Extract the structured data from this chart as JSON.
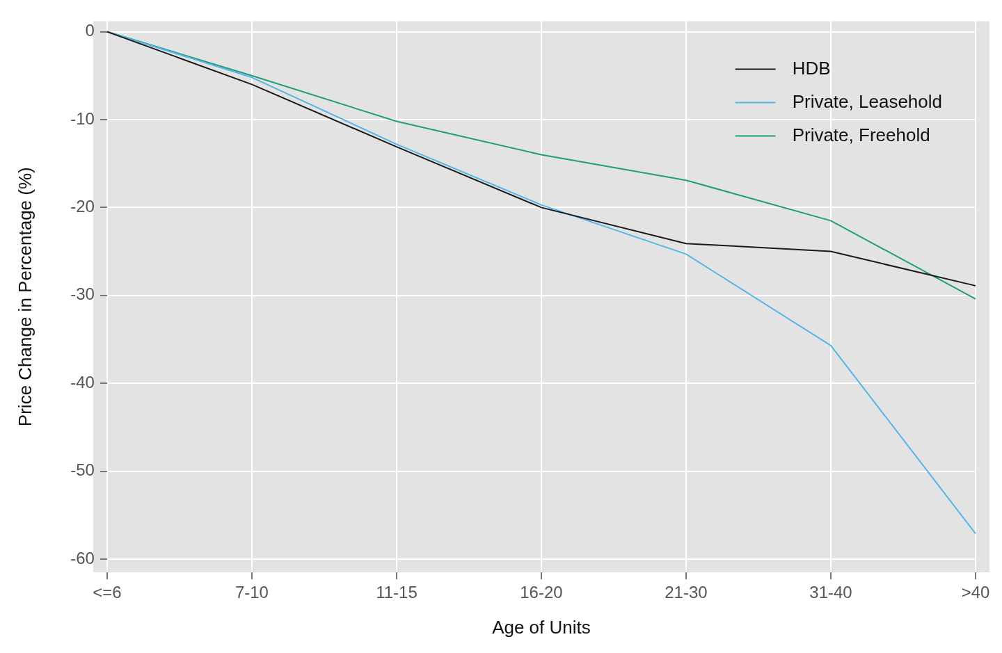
{
  "chart_data": {
    "type": "line",
    "xlabel": "Age of Units",
    "ylabel": "Price Change in Percentage (%)",
    "categories": [
      "<=6",
      "7-10",
      "11-15",
      "16-20",
      "21-30",
      "31-40",
      ">40"
    ],
    "series": [
      {
        "name": "HDB",
        "color": "#1a1a1a",
        "values": [
          0,
          -6,
          -13.1,
          -20,
          -24.1,
          -25,
          -28.9
        ]
      },
      {
        "name": "Private, Leasehold",
        "color": "#56b4e9",
        "values": [
          0,
          -5.2,
          -12.8,
          -19.7,
          -25.3,
          -35.7,
          -57.1
        ]
      },
      {
        "name": "Private, Freehold",
        "color": "#1f9e78",
        "values": [
          0,
          -5,
          -10.2,
          -14,
          -16.9,
          -21.5,
          -30.4
        ]
      }
    ],
    "ylim": [
      -61.5,
      1.2
    ],
    "yticks": [
      0,
      -10,
      -20,
      -30,
      -40,
      -50,
      -60
    ],
    "grid": true,
    "legend": "top right",
    "marker": "none",
    "line_style": "solid"
  }
}
